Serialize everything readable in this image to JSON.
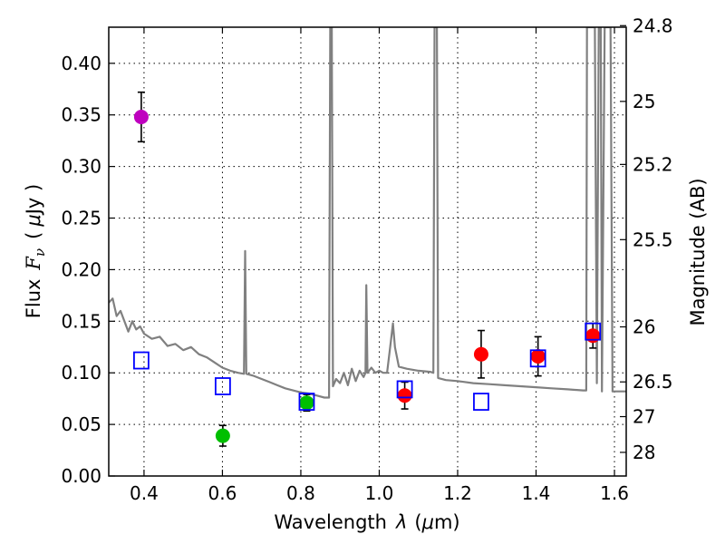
{
  "chart_data": {
    "type": "scatter",
    "xlabel_prefix": "Wavelength",
    "xlabel_symbol": "λ",
    "xlabel_unit_open": "(",
    "xlabel_unit_mu": "μ",
    "xlabel_unit_rest": "m)",
    "ylabel_prefix": "Flux",
    "ylabel_symbol": "F",
    "ylabel_subscript": "ν",
    "ylabel_unit_open": "(",
    "ylabel_unit_mu": "μ",
    "ylabel_unit_rest": "Jy )",
    "y2label": "Magnitude (AB)",
    "xlim": [
      0.31,
      1.63
    ],
    "ylim": [
      0.0,
      0.435
    ],
    "grid": true,
    "x_ticks": [
      0.4,
      0.6,
      0.8,
      1.0,
      1.2,
      1.4,
      1.6
    ],
    "x_tick_labels": [
      "0.4",
      "0.6",
      "0.8",
      "1.0",
      "1.2",
      "1.4",
      "1.6"
    ],
    "y_ticks": [
      0.0,
      0.05,
      0.1,
      0.15,
      0.2,
      0.25,
      0.3,
      0.35,
      0.4
    ],
    "y_tick_labels": [
      "0.00",
      "0.05",
      "0.10",
      "0.15",
      "0.20",
      "0.25",
      "0.30",
      "0.35",
      "0.40"
    ],
    "mag_ticks": [
      24.8,
      25,
      25.2,
      25.5,
      26,
      26.5,
      27,
      28
    ],
    "mag_tick_labels": [
      "24.8",
      "25",
      "25.2",
      "25.5",
      "26",
      "26.5",
      "27",
      "28"
    ],
    "series": [
      {
        "name": "observed-photometry",
        "marker": "circle",
        "points": [
          {
            "x": 0.393,
            "y": 0.348,
            "err": 0.024,
            "color": "#bf00bf"
          },
          {
            "x": 0.601,
            "y": 0.039,
            "err": 0.01,
            "color": "#00bf00"
          },
          {
            "x": 0.815,
            "y": 0.071,
            "err": 0.008,
            "color": "#00bf00"
          },
          {
            "x": 1.065,
            "y": 0.078,
            "err": 0.013,
            "color": "#ff0000"
          },
          {
            "x": 1.26,
            "y": 0.118,
            "err": 0.023,
            "color": "#ff0000"
          },
          {
            "x": 1.405,
            "y": 0.116,
            "err": 0.019,
            "color": "#ff0000"
          },
          {
            "x": 1.545,
            "y": 0.136,
            "err": 0.012,
            "color": "#ff0000"
          }
        ]
      },
      {
        "name": "model-photometry",
        "marker": "open-square",
        "color": "#0000ff",
        "points": [
          {
            "x": 0.393,
            "y": 0.112
          },
          {
            "x": 0.601,
            "y": 0.087
          },
          {
            "x": 0.815,
            "y": 0.072
          },
          {
            "x": 1.065,
            "y": 0.084
          },
          {
            "x": 1.26,
            "y": 0.072
          },
          {
            "x": 1.405,
            "y": 0.114
          },
          {
            "x": 1.545,
            "y": 0.14
          }
        ]
      },
      {
        "name": "model-spectrum",
        "type": "line",
        "color": "#808080",
        "points": [
          [
            0.31,
            0.168
          ],
          [
            0.32,
            0.172
          ],
          [
            0.33,
            0.155
          ],
          [
            0.34,
            0.16
          ],
          [
            0.35,
            0.15
          ],
          [
            0.36,
            0.14
          ],
          [
            0.37,
            0.15
          ],
          [
            0.38,
            0.142
          ],
          [
            0.39,
            0.145
          ],
          [
            0.4,
            0.138
          ],
          [
            0.42,
            0.133
          ],
          [
            0.44,
            0.135
          ],
          [
            0.46,
            0.126
          ],
          [
            0.48,
            0.128
          ],
          [
            0.5,
            0.122
          ],
          [
            0.52,
            0.125
          ],
          [
            0.54,
            0.118
          ],
          [
            0.56,
            0.115
          ],
          [
            0.58,
            0.11
          ],
          [
            0.6,
            0.105
          ],
          [
            0.62,
            0.102
          ],
          [
            0.64,
            0.1
          ],
          [
            0.655,
            0.099
          ],
          [
            0.658,
            0.218
          ],
          [
            0.661,
            0.099
          ],
          [
            0.68,
            0.097
          ],
          [
            0.7,
            0.094
          ],
          [
            0.72,
            0.091
          ],
          [
            0.74,
            0.088
          ],
          [
            0.76,
            0.085
          ],
          [
            0.78,
            0.083
          ],
          [
            0.8,
            0.081
          ],
          [
            0.82,
            0.08
          ],
          [
            0.84,
            0.078
          ],
          [
            0.86,
            0.076
          ],
          [
            0.872,
            0.076
          ],
          [
            0.875,
            0.435
          ],
          [
            0.879,
            0.435
          ],
          [
            0.882,
            0.087
          ],
          [
            0.89,
            0.094
          ],
          [
            0.9,
            0.09
          ],
          [
            0.91,
            0.1
          ],
          [
            0.92,
            0.088
          ],
          [
            0.93,
            0.104
          ],
          [
            0.94,
            0.092
          ],
          [
            0.95,
            0.102
          ],
          [
            0.96,
            0.096
          ],
          [
            0.965,
            0.1
          ],
          [
            0.967,
            0.185
          ],
          [
            0.97,
            0.1
          ],
          [
            0.98,
            0.105
          ],
          [
            0.99,
            0.1
          ],
          [
            1.0,
            0.102
          ],
          [
            1.01,
            0.1
          ],
          [
            1.02,
            0.1
          ],
          [
            1.03,
            0.132
          ],
          [
            1.035,
            0.148
          ],
          [
            1.04,
            0.125
          ],
          [
            1.05,
            0.106
          ],
          [
            1.07,
            0.104
          ],
          [
            1.1,
            0.102
          ],
          [
            1.13,
            0.101
          ],
          [
            1.138,
            0.1
          ],
          [
            1.141,
            0.435
          ],
          [
            1.147,
            0.435
          ],
          [
            1.15,
            0.095
          ],
          [
            1.17,
            0.093
          ],
          [
            1.2,
            0.092
          ],
          [
            1.24,
            0.09
          ],
          [
            1.28,
            0.089
          ],
          [
            1.32,
            0.088
          ],
          [
            1.36,
            0.087
          ],
          [
            1.4,
            0.086
          ],
          [
            1.44,
            0.085
          ],
          [
            1.48,
            0.084
          ],
          [
            1.52,
            0.083
          ],
          [
            1.528,
            0.083
          ],
          [
            1.53,
            0.435
          ],
          [
            1.55,
            0.435
          ],
          [
            1.555,
            0.09
          ],
          [
            1.56,
            0.435
          ],
          [
            1.565,
            0.435
          ],
          [
            1.568,
            0.082
          ],
          [
            1.575,
            0.435
          ],
          [
            1.585,
            0.435
          ],
          [
            1.59,
            0.435
          ],
          [
            1.595,
            0.082
          ],
          [
            1.63,
            0.082
          ]
        ]
      }
    ]
  }
}
